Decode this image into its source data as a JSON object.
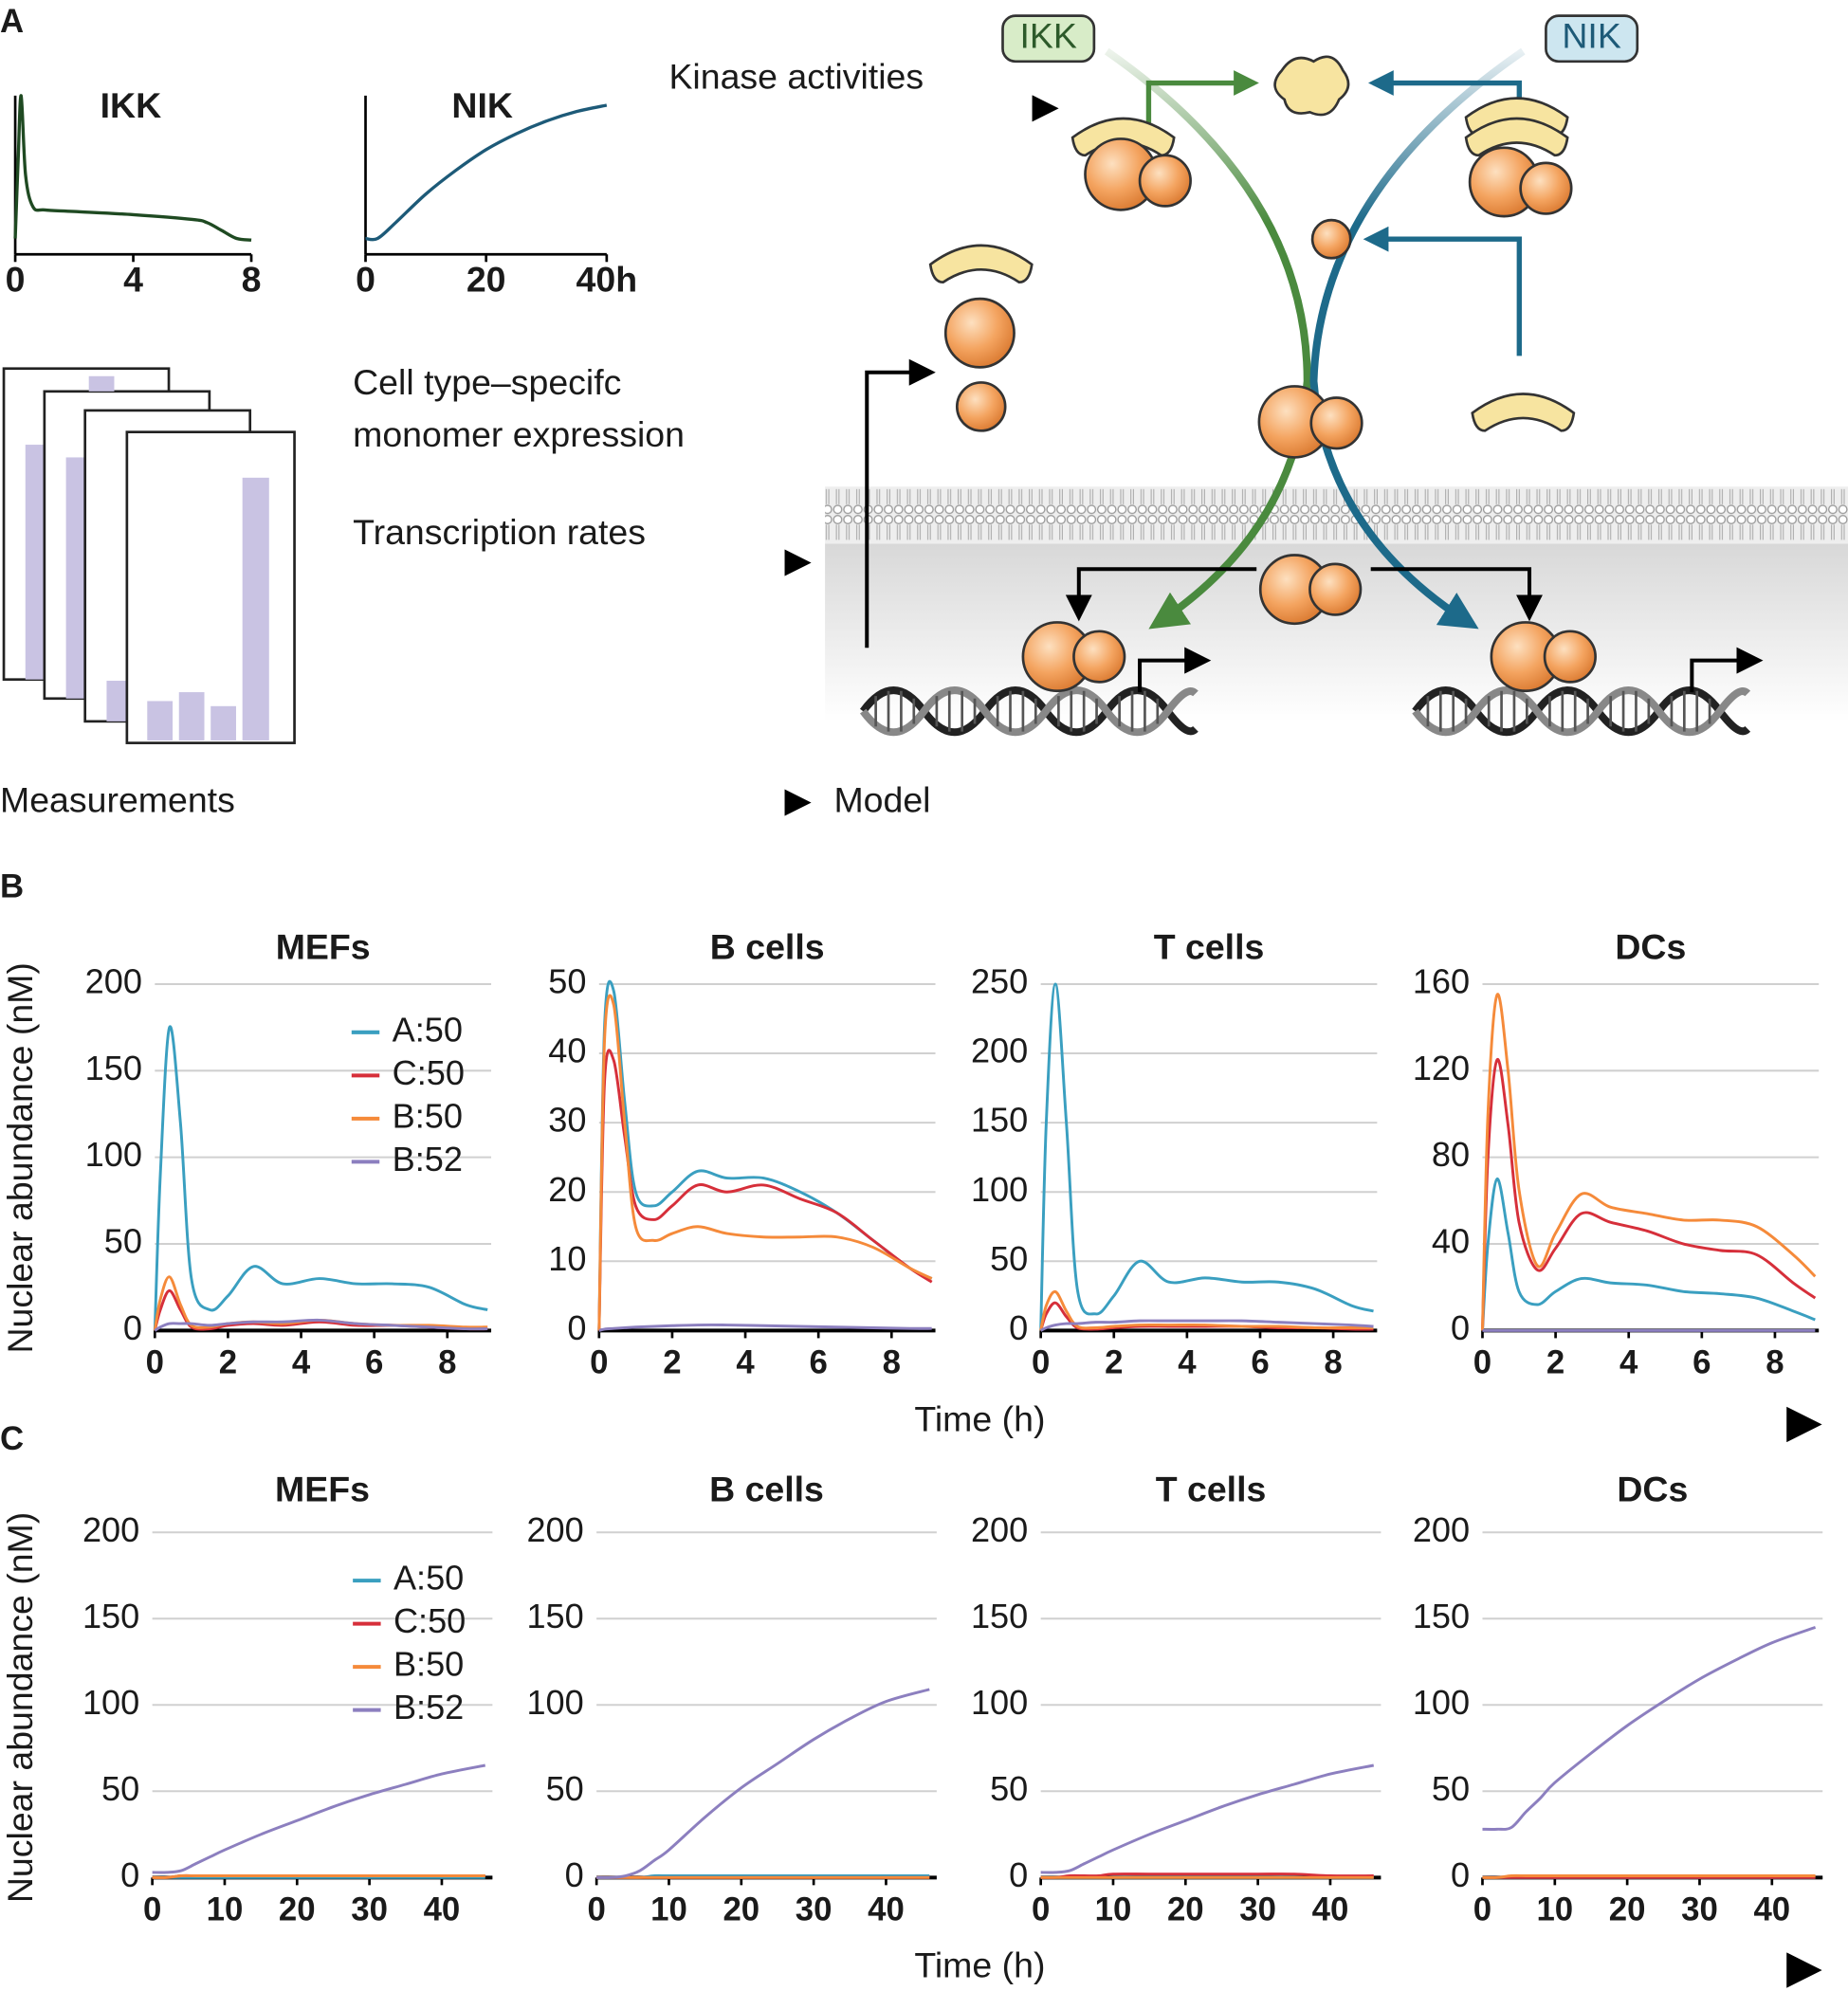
{
  "panels": [
    {
      "label": "A"
    },
    {
      "label": "B",
      "y_label": "Nuclear abundance (nM)",
      "x_label": "Time (h)"
    },
    {
      "label": "C",
      "y_label": "Nuclear abundance (nM)",
      "x_label": "Time (h)"
    }
  ],
  "diagram": {
    "kinase_label": "Kinase activities",
    "ikk": "IKK",
    "nik": "NIK",
    "expression_label": [
      "Cell type–specifc",
      "monomer expression"
    ],
    "transcription_label": "Transcription rates",
    "measurements": "Measurements",
    "model": "Model"
  },
  "chart_data": [
    {
      "type": "line",
      "title": "IKK",
      "x": [
        0,
        0.1,
        0.2,
        0.35,
        0.6,
        1,
        2,
        4,
        6,
        6.5,
        7,
        7.5,
        8
      ],
      "series": [
        {
          "color": "#1f4a22",
          "values": [
            0.1,
            0.6,
            1,
            0.5,
            0.3,
            0.28,
            0.27,
            0.25,
            0.22,
            0.2,
            0.15,
            0.1,
            0.09
          ]
        }
      ],
      "xlim": [
        0,
        8
      ],
      "ylim": [
        0,
        1
      ],
      "xticks": [
        0,
        4,
        8
      ]
    },
    {
      "type": "line",
      "title": "NIK",
      "x": [
        0,
        2,
        5,
        10,
        15,
        20,
        25,
        30,
        35,
        40
      ],
      "series": [
        {
          "color": "#1d5a78",
          "values": [
            0.1,
            0.1,
            0.2,
            0.38,
            0.53,
            0.66,
            0.76,
            0.84,
            0.9,
            0.94
          ]
        }
      ],
      "xlim": [
        0,
        40
      ],
      "ylim": [
        0,
        1
      ],
      "xticks": [
        0,
        20,
        {
          "value": 40,
          "label": "40h"
        }
      ]
    },
    {
      "type": "line",
      "title": "MEFs",
      "x": [
        0,
        0.15,
        0.4,
        0.7,
        1,
        1.5,
        2,
        2.7,
        3.5,
        4.5,
        5.5,
        6.5,
        7.5,
        8.5,
        9.1
      ],
      "series": [
        {
          "name": "A:50",
          "color": "#3a9fc0",
          "values": [
            0,
            90,
            175,
            120,
            30,
            12,
            20,
            37,
            27,
            30,
            27,
            27,
            25,
            15,
            12
          ]
        },
        {
          "name": "C:50",
          "color": "#d62f3a",
          "values": [
            0,
            12,
            23,
            12,
            2,
            1,
            3,
            4,
            3,
            5,
            3,
            3,
            2,
            1,
            1
          ]
        },
        {
          "name": "B:50",
          "color": "#f58a3a",
          "values": [
            0,
            18,
            31,
            15,
            3,
            2,
            4,
            5,
            4,
            6,
            4,
            3,
            3,
            2,
            2
          ]
        },
        {
          "name": "B:52",
          "color": "#8c7fbf",
          "values": [
            0,
            2,
            4,
            4,
            4,
            3,
            4,
            5,
            5,
            6,
            4,
            3,
            2,
            1,
            1
          ]
        }
      ],
      "xlim": [
        0,
        9.2
      ],
      "ylim": [
        0,
        200
      ],
      "xticks": [
        0,
        2,
        4,
        6,
        8
      ],
      "yticks": [
        0,
        50,
        100,
        150,
        200
      ],
      "grid": true,
      "legend": "upper right"
    },
    {
      "type": "line",
      "title": "B cells",
      "x": [
        0,
        0.15,
        0.4,
        0.7,
        1,
        1.5,
        2,
        2.7,
        3.5,
        4.5,
        5.5,
        6.5,
        7.5,
        8.5,
        9.1
      ],
      "series": [
        {
          "color": "#3a9fc0",
          "values": [
            0,
            44,
            49,
            33,
            20,
            18,
            20,
            23,
            22,
            22,
            20,
            17,
            13,
            9,
            7.5
          ]
        },
        {
          "color": "#d62f3a",
          "values": [
            0,
            36,
            39,
            28,
            18,
            16,
            18,
            21,
            20,
            21,
            19,
            17,
            13,
            9,
            7
          ]
        },
        {
          "color": "#f58a3a",
          "values": [
            0,
            42,
            47,
            30,
            15,
            13,
            14,
            15,
            14,
            13.5,
            13.5,
            13.5,
            12,
            9,
            7.5
          ]
        },
        {
          "color": "#8c7fbf",
          "values": [
            0,
            0.2,
            0.3,
            0.4,
            0.5,
            0.6,
            0.7,
            0.8,
            0.8,
            0.7,
            0.6,
            0.5,
            0.4,
            0.3,
            0.3
          ]
        }
      ],
      "xlim": [
        0,
        9.2
      ],
      "ylim": [
        0,
        50
      ],
      "xticks": [
        0,
        2,
        4,
        6,
        8
      ],
      "yticks": [
        0,
        10,
        20,
        30,
        40,
        50
      ],
      "grid": true
    },
    {
      "type": "line",
      "title": "T cells",
      "x": [
        0,
        0.15,
        0.4,
        0.7,
        1,
        1.5,
        2,
        2.7,
        3.5,
        4.5,
        5.5,
        6.5,
        7.5,
        8.5,
        9.1
      ],
      "series": [
        {
          "color": "#3a9fc0",
          "values": [
            0,
            150,
            250,
            150,
            30,
            12,
            25,
            50,
            35,
            38,
            35,
            35,
            30,
            18,
            14
          ]
        },
        {
          "color": "#d62f3a",
          "values": [
            0,
            12,
            20,
            10,
            2,
            1,
            2,
            3,
            3,
            3,
            3,
            2,
            2,
            1,
            1
          ]
        },
        {
          "color": "#f58a3a",
          "values": [
            0,
            18,
            28,
            14,
            3,
            2,
            3,
            4,
            4,
            4,
            3,
            3,
            2,
            2,
            2
          ]
        },
        {
          "color": "#8c7fbf",
          "values": [
            0,
            2,
            4,
            5,
            5,
            6,
            6,
            7,
            7,
            7,
            7,
            6,
            5,
            4,
            3
          ]
        }
      ],
      "xlim": [
        0,
        9.2
      ],
      "ylim": [
        0,
        250
      ],
      "xticks": [
        0,
        2,
        4,
        6,
        8
      ],
      "yticks": [
        0,
        50,
        100,
        150,
        200,
        250
      ],
      "grid": true
    },
    {
      "type": "line",
      "title": "DCs",
      "x": [
        0,
        0.15,
        0.4,
        0.7,
        1,
        1.5,
        2,
        2.7,
        3.5,
        4.5,
        5.5,
        6.5,
        7.5,
        8.5,
        9.1
      ],
      "series": [
        {
          "color": "#3a9fc0",
          "values": [
            0,
            40,
            70,
            45,
            18,
            12,
            18,
            24,
            22,
            21,
            18,
            17,
            15,
            9,
            5
          ]
        },
        {
          "color": "#d62f3a",
          "values": [
            0,
            80,
            125,
            95,
            50,
            28,
            38,
            54,
            50,
            46,
            40,
            37,
            35,
            22,
            15
          ]
        },
        {
          "color": "#f58a3a",
          "values": [
            0,
            100,
            155,
            120,
            65,
            30,
            45,
            63,
            57,
            54,
            51,
            51,
            48,
            35,
            25
          ]
        },
        {
          "color": "#8c7fbf",
          "values": [
            0,
            0,
            0,
            0,
            0,
            0,
            0,
            0,
            0,
            0,
            0,
            0,
            0,
            0,
            0
          ]
        }
      ],
      "xlim": [
        0,
        9.2
      ],
      "ylim": [
        0,
        160
      ],
      "xticks": [
        0,
        2,
        4,
        6,
        8
      ],
      "yticks": [
        0,
        40,
        80,
        120,
        160
      ],
      "grid": true
    },
    {
      "type": "line",
      "title": "MEFs",
      "x": [
        0,
        2,
        4,
        6,
        8,
        10,
        15,
        20,
        25,
        30,
        35,
        40,
        46
      ],
      "series": [
        {
          "name": "A:50",
          "color": "#3a9fc0",
          "values": [
            0,
            0,
            0,
            0,
            0,
            0,
            0,
            0,
            0,
            0,
            0,
            0,
            0
          ]
        },
        {
          "name": "C:50",
          "color": "#d62f3a",
          "values": [
            0,
            0,
            1,
            1,
            1,
            1,
            1,
            1,
            1,
            1,
            1,
            1,
            1
          ]
        },
        {
          "name": "B:50",
          "color": "#f58a3a",
          "values": [
            0,
            0,
            1,
            1,
            1,
            1,
            1,
            1,
            1,
            1,
            1,
            1,
            1
          ]
        },
        {
          "name": "B:52",
          "color": "#8c7fbf",
          "values": [
            3,
            3,
            4,
            8,
            12,
            16,
            25,
            33,
            41,
            48,
            54,
            60,
            65
          ]
        }
      ],
      "xlim": [
        0,
        47
      ],
      "ylim": [
        0,
        200
      ],
      "xticks": [
        0,
        10,
        20,
        30,
        40
      ],
      "yticks": [
        0,
        50,
        100,
        150,
        200
      ],
      "grid": true,
      "legend": "upper right"
    },
    {
      "type": "line",
      "title": "B cells",
      "x": [
        0,
        2,
        4,
        6,
        8,
        10,
        15,
        20,
        25,
        30,
        35,
        40,
        46
      ],
      "series": [
        {
          "color": "#3a9fc0",
          "values": [
            0,
            0,
            0,
            0,
            1,
            1,
            1,
            1,
            1,
            1,
            1,
            1,
            1
          ]
        },
        {
          "color": "#d62f3a",
          "values": [
            0,
            0,
            0,
            0,
            0,
            0,
            0,
            0,
            0,
            0,
            0,
            0,
            0
          ]
        },
        {
          "color": "#f58a3a",
          "values": [
            0,
            0,
            0,
            0,
            0,
            0,
            0,
            0,
            0,
            0,
            0,
            0,
            0
          ]
        },
        {
          "color": "#8c7fbf",
          "values": [
            0,
            0,
            1,
            4,
            10,
            16,
            35,
            52,
            66,
            80,
            92,
            102,
            109
          ]
        }
      ],
      "xlim": [
        0,
        47
      ],
      "ylim": [
        0,
        200
      ],
      "xticks": [
        0,
        10,
        20,
        30,
        40
      ],
      "yticks": [
        0,
        50,
        100,
        150,
        200
      ],
      "grid": true
    },
    {
      "type": "line",
      "title": "T cells",
      "x": [
        0,
        2,
        4,
        6,
        8,
        10,
        15,
        20,
        25,
        30,
        35,
        40,
        46
      ],
      "series": [
        {
          "color": "#3a9fc0",
          "values": [
            0,
            0,
            0,
            0,
            0,
            0,
            0,
            0,
            0,
            0,
            0,
            0,
            0
          ]
        },
        {
          "color": "#d62f3a",
          "values": [
            0,
            0,
            1,
            1,
            1,
            2,
            2,
            2,
            2,
            2,
            2,
            1,
            1
          ]
        },
        {
          "color": "#f58a3a",
          "values": [
            0,
            0,
            0,
            0,
            0,
            0,
            0,
            0,
            0,
            0,
            0,
            0,
            0
          ]
        },
        {
          "color": "#8c7fbf",
          "values": [
            3,
            3,
            4,
            8,
            12,
            16,
            25,
            33,
            41,
            48,
            54,
            60,
            65
          ]
        }
      ],
      "xlim": [
        0,
        47
      ],
      "ylim": [
        0,
        200
      ],
      "xticks": [
        0,
        10,
        20,
        30,
        40
      ],
      "yticks": [
        0,
        50,
        100,
        150,
        200
      ],
      "grid": true
    },
    {
      "type": "line",
      "title": "DCs",
      "x": [
        0,
        2,
        4,
        6,
        8,
        10,
        15,
        20,
        25,
        30,
        35,
        40,
        46
      ],
      "series": [
        {
          "color": "#3a9fc0",
          "values": [
            0,
            0,
            0,
            0,
            0,
            0,
            0,
            0,
            0,
            0,
            0,
            0,
            0
          ]
        },
        {
          "color": "#d62f3a",
          "values": [
            0,
            0,
            0,
            0,
            0,
            0,
            0,
            0,
            0,
            0,
            0,
            0,
            0
          ]
        },
        {
          "color": "#f58a3a",
          "values": [
            0,
            0,
            1,
            1,
            1,
            1,
            1,
            1,
            1,
            1,
            1,
            1,
            1
          ]
        },
        {
          "color": "#8c7fbf",
          "values": [
            28,
            28,
            29,
            38,
            46,
            55,
            72,
            88,
            102,
            115,
            126,
            136,
            145
          ]
        }
      ],
      "xlim": [
        0,
        47
      ],
      "ylim": [
        0,
        200
      ],
      "xticks": [
        0,
        10,
        20,
        30,
        40
      ],
      "yticks": [
        0,
        50,
        100,
        150,
        200
      ],
      "grid": true
    }
  ]
}
